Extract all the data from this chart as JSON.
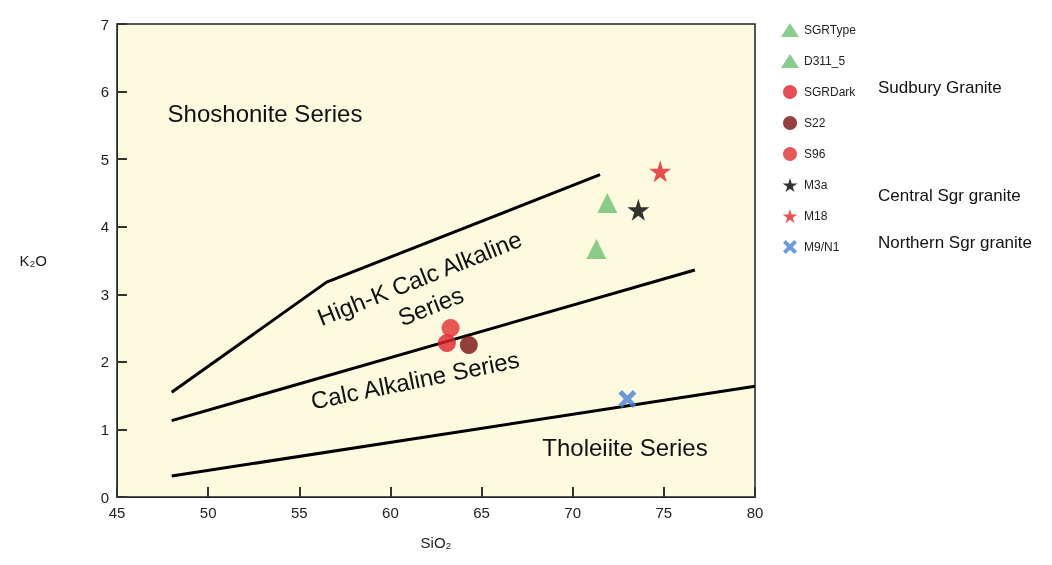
{
  "chart_data": {
    "type": "scatter",
    "xlabel": "SiO₂",
    "ylabel": "K₂O",
    "xlim": [
      45,
      80
    ],
    "xticks": [
      45,
      50,
      55,
      60,
      65,
      70,
      75,
      80
    ],
    "ylim": [
      0,
      7
    ],
    "yticks": [
      0,
      1,
      2,
      3,
      4,
      5,
      6,
      7
    ],
    "grid": false,
    "legend": "right",
    "series": [
      {
        "name": "SGRType",
        "color": "#6dbf74",
        "marker": "triangle",
        "x": [
          71.9
        ],
        "values": [
          4.35
        ]
      },
      {
        "name": "D311_5",
        "color": "#6dbf74",
        "marker": "triangle",
        "x": [
          71.3
        ],
        "values": [
          3.67
        ]
      },
      {
        "name": "SGRDark",
        "color": "#e0202a",
        "marker": "circle",
        "x": [
          63.1
        ],
        "values": [
          2.28
        ]
      },
      {
        "name": "S22",
        "color": "#7a1010",
        "marker": "circle",
        "x": [
          64.3
        ],
        "values": [
          2.25
        ]
      },
      {
        "name": "S96",
        "color": "#e03030",
        "marker": "circle",
        "x": [
          63.3
        ],
        "values": [
          2.5
        ]
      },
      {
        "name": "M3a",
        "color": "#000000",
        "marker": "star",
        "x": [
          73.6
        ],
        "values": [
          4.25
        ]
      },
      {
        "name": "M18",
        "color": "#e0242c",
        "marker": "star",
        "x": [
          74.8
        ],
        "values": [
          4.82
        ]
      },
      {
        "name": "M9/N1",
        "color": "#4a7fd4",
        "marker": "cross",
        "x": [
          73.0
        ],
        "values": [
          1.45
        ]
      },
      {
        "type": "line",
        "color": "#000000",
        "marker": "none",
        "x": [
          48,
          56.5,
          71.5
        ],
        "values": [
          1.55,
          3.18,
          4.77
        ]
      },
      {
        "type": "line",
        "color": "#000000",
        "marker": "none",
        "x": [
          48,
          76.7
        ],
        "values": [
          1.13,
          3.36
        ]
      },
      {
        "type": "line",
        "color": "#000000",
        "marker": "none",
        "x": [
          48,
          80
        ],
        "values": [
          0.31,
          1.64
        ]
      }
    ],
    "annotations": [
      "Shoshonite Series",
      "High-K Calc Alkaline\nSeries",
      "Calc Alkaline Series",
      "Tholeiite Series",
      "Sudbury Granite",
      "Central Sgr granite",
      "Northern Sgr granite"
    ]
  }
}
